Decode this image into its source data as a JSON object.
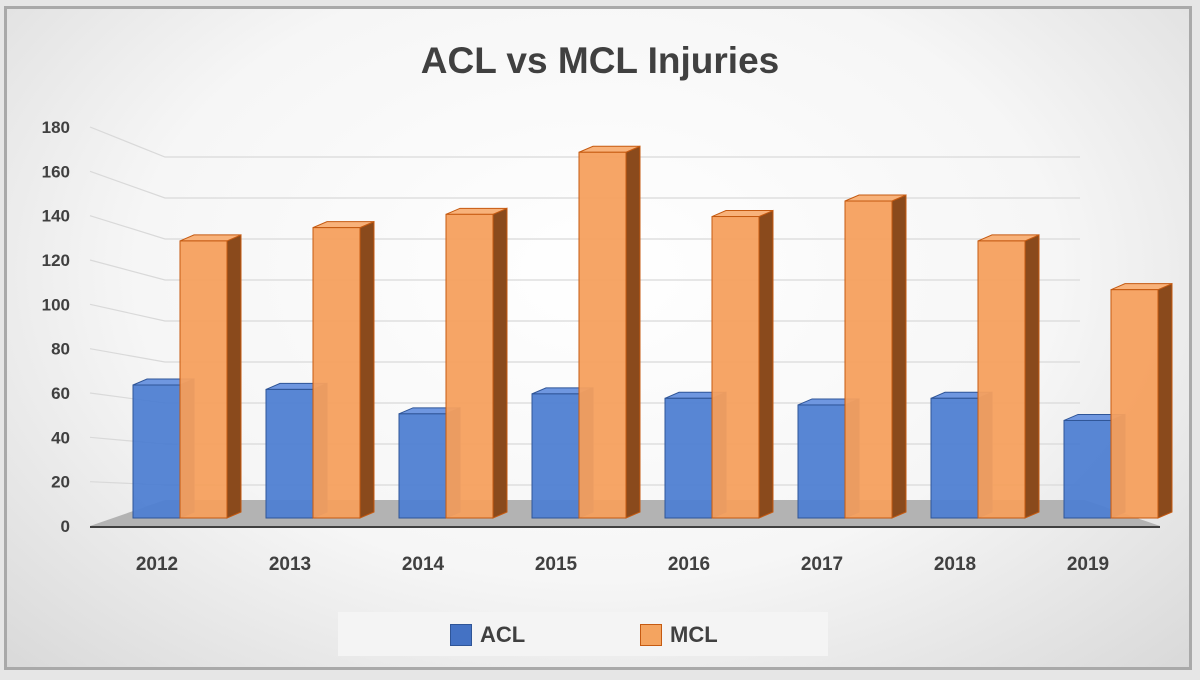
{
  "chart_data": {
    "type": "bar",
    "title": "ACL vs MCL Injuries",
    "xlabel": "",
    "ylabel": "",
    "categories": [
      "2012",
      "2013",
      "2014",
      "2015",
      "2016",
      "2017",
      "2018",
      "2019"
    ],
    "series": [
      {
        "name": "ACL",
        "color": "#4472c4",
        "values": [
          60,
          58,
          47,
          56,
          54,
          51,
          54,
          44
        ]
      },
      {
        "name": "MCL",
        "color": "#ed7d31",
        "values": [
          125,
          131,
          137,
          165,
          136,
          143,
          125,
          103
        ]
      }
    ],
    "yticks": [
      "0",
      "20",
      "40",
      "60",
      "80",
      "100",
      "120",
      "140",
      "160",
      "180"
    ],
    "ylim": [
      0,
      180
    ],
    "grid": true,
    "legend": "bottom"
  }
}
